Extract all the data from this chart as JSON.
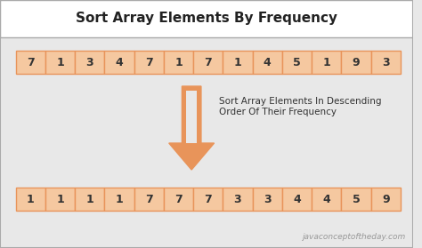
{
  "title": "Sort Array Elements By Frequency",
  "input_array": [
    7,
    1,
    3,
    4,
    7,
    1,
    7,
    1,
    4,
    5,
    1,
    9,
    3
  ],
  "output_array": [
    1,
    1,
    1,
    1,
    7,
    7,
    7,
    3,
    3,
    4,
    4,
    5,
    9
  ],
  "arrow_text_line1": "Sort Array Elements In Descending",
  "arrow_text_line2": "Order Of Their Frequency",
  "watermark": "javaconceptoftheday.com",
  "bg_color": "#e8e8e8",
  "title_bg": "#ffffff",
  "box_fill": "#f5c8a0",
  "box_edge": "#e8945a",
  "arrow_color": "#e8945a",
  "text_color": "#333333",
  "title_color": "#222222",
  "watermark_color": "#999999",
  "title_fontsize": 11,
  "array_fontsize": 9,
  "arrow_text_fontsize": 7.5
}
